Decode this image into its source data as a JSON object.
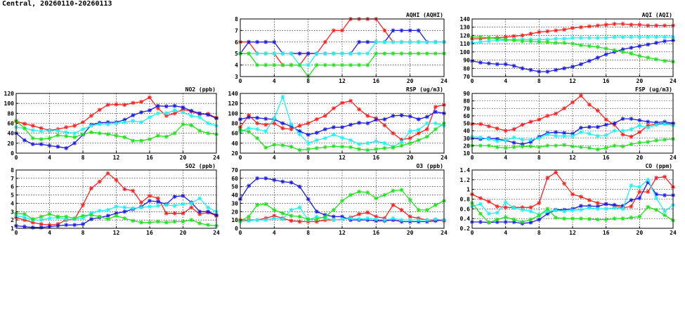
{
  "page": {
    "title": "Central, 20260110-20260113"
  },
  "colors": {
    "red": "#ff2020",
    "blue": "#1c1ce0",
    "cyan": "#20f0f0",
    "green": "#20e020"
  },
  "chart_data": [
    {
      "type": "line",
      "title": "AQHI (AQHI)",
      "xlim": [
        0,
        24
      ],
      "xticks": [
        0,
        4,
        8,
        12,
        16,
        20,
        24
      ],
      "ylim": [
        3,
        8
      ],
      "yticks": [
        3,
        4,
        5,
        6,
        7,
        8
      ],
      "grid": true,
      "series": [
        {
          "color": "#ff2020",
          "values": [
            6,
            6,
            5,
            5,
            5,
            4,
            4,
            4,
            5,
            5,
            6,
            7,
            7,
            8,
            8,
            8,
            8,
            7,
            6,
            6,
            6,
            6,
            6,
            6,
            6
          ]
        },
        {
          "color": "#1c1ce0",
          "values": [
            5,
            6,
            6,
            6,
            6,
            5,
            5,
            5,
            5,
            5,
            5,
            5,
            5,
            5,
            6,
            6,
            6,
            6,
            7,
            7,
            7,
            7,
            6,
            6,
            6
          ]
        },
        {
          "color": "#20f0f0",
          "values": [
            5,
            5,
            5,
            5,
            5,
            5,
            5,
            4,
            4,
            5,
            5,
            5,
            5,
            5,
            5,
            5,
            6,
            6,
            6,
            6,
            6,
            6,
            6,
            6,
            6
          ]
        },
        {
          "color": "#20e020",
          "values": [
            5,
            5,
            4,
            4,
            4,
            4,
            4,
            4,
            3,
            4,
            4,
            4,
            4,
            4,
            4,
            4,
            5,
            5,
            5,
            5,
            5,
            5,
            5,
            5,
            5
          ]
        }
      ]
    },
    {
      "type": "line",
      "title": "AQI (AQI)",
      "xlim": [
        0,
        24
      ],
      "xticks": [
        0,
        4,
        8,
        12,
        16,
        20,
        24
      ],
      "ylim": [
        70,
        140
      ],
      "yticks": [
        70,
        80,
        90,
        100,
        110,
        120,
        130,
        140
      ],
      "grid": true,
      "series": [
        {
          "color": "#ff2020",
          "values": [
            116,
            116,
            117,
            117,
            118,
            119,
            120,
            122,
            124,
            125,
            126,
            127,
            129,
            130,
            131,
            132,
            133,
            134,
            134,
            133,
            133,
            132,
            132,
            132,
            132
          ]
        },
        {
          "color": "#1c1ce0",
          "values": [
            89,
            87,
            86,
            85,
            85,
            83,
            80,
            78,
            76,
            76,
            78,
            80,
            82,
            85,
            89,
            93,
            97,
            100,
            103,
            105,
            107,
            109,
            111,
            113,
            114
          ]
        },
        {
          "color": "#20f0f0",
          "values": [
            111,
            112,
            113,
            114,
            114,
            115,
            115,
            115,
            115,
            115,
            116,
            116,
            117,
            117,
            117,
            117,
            117,
            118,
            118,
            118,
            118,
            118,
            118,
            118,
            118
          ]
        },
        {
          "color": "#20e020",
          "values": [
            118,
            118,
            117,
            116,
            115,
            114,
            113,
            113,
            112,
            112,
            111,
            111,
            110,
            108,
            107,
            106,
            104,
            102,
            100,
            98,
            95,
            93,
            91,
            89,
            88
          ]
        }
      ]
    },
    {
      "type": "line",
      "title": "NO2 (ppb)",
      "xlim": [
        0,
        24
      ],
      "xticks": [
        0,
        4,
        8,
        12,
        16,
        20,
        24
      ],
      "ylim": [
        0,
        120
      ],
      "yticks": [
        0,
        20,
        40,
        60,
        80,
        100,
        120
      ],
      "grid": true,
      "series": [
        {
          "color": "#ff2020",
          "values": [
            64,
            59,
            55,
            50,
            46,
            48,
            52,
            55,
            62,
            75,
            87,
            97,
            98,
            97,
            101,
            103,
            112,
            90,
            75,
            80,
            88,
            84,
            78,
            79,
            71
          ]
        },
        {
          "color": "#1c1ce0",
          "values": [
            40,
            26,
            18,
            18,
            15,
            13,
            10,
            20,
            37,
            57,
            61,
            62,
            62,
            67,
            76,
            82,
            86,
            95,
            94,
            95,
            92,
            85,
            80,
            77,
            70
          ]
        },
        {
          "color": "#20f0f0",
          "values": [
            52,
            50,
            46,
            44,
            45,
            45,
            42,
            40,
            48,
            55,
            58,
            58,
            60,
            62,
            65,
            62,
            72,
            80,
            80,
            86,
            82,
            75,
            72,
            60,
            55
          ]
        },
        {
          "color": "#20e020",
          "values": [
            65,
            50,
            30,
            28,
            30,
            36,
            34,
            32,
            38,
            42,
            40,
            38,
            35,
            32,
            25,
            25,
            28,
            35,
            33,
            40,
            58,
            56,
            45,
            40,
            38
          ]
        }
      ]
    },
    {
      "type": "line",
      "title": "RSP (ug/m3)",
      "xlim": [
        0,
        24
      ],
      "xticks": [
        0,
        4,
        8,
        12,
        16,
        20,
        24
      ],
      "ylim": [
        20,
        140
      ],
      "yticks": [
        20,
        40,
        60,
        80,
        100,
        120,
        140
      ],
      "grid": true,
      "series": [
        {
          "color": "#ff2020",
          "values": [
            72,
            96,
            80,
            77,
            80,
            70,
            68,
            75,
            80,
            88,
            95,
            110,
            121,
            125,
            108,
            95,
            90,
            76,
            60,
            47,
            50,
            60,
            68,
            113,
            117
          ]
        },
        {
          "color": "#1c1ce0",
          "values": [
            88,
            92,
            91,
            89,
            88,
            80,
            74,
            64,
            57,
            61,
            68,
            72,
            72,
            77,
            81,
            80,
            87,
            88,
            95,
            96,
            94,
            88,
            93,
            103,
            100
          ]
        },
        {
          "color": "#20f0f0",
          "values": [
            63,
            70,
            68,
            64,
            90,
            133,
            78,
            58,
            40,
            46,
            50,
            57,
            51,
            46,
            38,
            40,
            44,
            40,
            33,
            42,
            64,
            67,
            80,
            80,
            75
          ]
        },
        {
          "color": "#20e020",
          "values": [
            67,
            63,
            50,
            31,
            37,
            36,
            33,
            26,
            28,
            30,
            32,
            34,
            33,
            32,
            28,
            26,
            28,
            30,
            31,
            35,
            40,
            46,
            53,
            68,
            80
          ]
        }
      ]
    },
    {
      "type": "line",
      "title": "FSP (ug/m3)",
      "xlim": [
        0,
        24
      ],
      "xticks": [
        0,
        4,
        8,
        12,
        16,
        20,
        24
      ],
      "ylim": [
        10,
        90
      ],
      "yticks": [
        10,
        20,
        30,
        40,
        50,
        60,
        70,
        80,
        90
      ],
      "grid": true,
      "series": [
        {
          "color": "#ff2020",
          "values": [
            49,
            49,
            46,
            43,
            40,
            42,
            48,
            52,
            55,
            60,
            63,
            70,
            78,
            87,
            75,
            67,
            55,
            48,
            35,
            32,
            38,
            47,
            49,
            50,
            49
          ]
        },
        {
          "color": "#1c1ce0",
          "values": [
            30,
            29,
            30,
            29,
            27,
            24,
            22,
            25,
            32,
            37,
            38,
            37,
            36,
            44,
            45,
            45,
            48,
            50,
            56,
            56,
            54,
            52,
            51,
            52,
            50
          ]
        },
        {
          "color": "#20f0f0",
          "values": [
            32,
            31,
            29,
            26,
            27,
            31,
            28,
            28,
            30,
            35,
            33,
            33,
            33,
            38,
            36,
            33,
            34,
            40,
            40,
            42,
            47,
            44,
            48,
            49,
            47
          ]
        },
        {
          "color": "#20e020",
          "values": [
            20,
            20,
            20,
            18,
            17,
            18,
            19,
            19,
            18,
            20,
            20,
            21,
            19,
            18,
            17,
            15,
            17,
            20,
            19,
            22,
            24,
            25,
            27,
            28,
            29
          ]
        }
      ]
    },
    {
      "type": "line",
      "title": "SO2 (ppb)",
      "xlim": [
        0,
        24
      ],
      "xticks": [
        0,
        4,
        8,
        12,
        16,
        20,
        24
      ],
      "ylim": [
        1,
        8
      ],
      "yticks": [
        1,
        2,
        3,
        4,
        5,
        6,
        7,
        8
      ],
      "grid": true,
      "series": [
        {
          "color": "#ff2020",
          "values": [
            2.3,
            2.0,
            1.7,
            1.5,
            1.4,
            1.5,
            2.0,
            2.1,
            3.8,
            5.8,
            6.6,
            7.6,
            6.8,
            5.7,
            5.5,
            4.1,
            4.9,
            4.6,
            2.8,
            2.8,
            2.8,
            3.5,
            2.7,
            2.9,
            2.5
          ]
        },
        {
          "color": "#1c1ce0",
          "values": [
            1.3,
            1.2,
            1.1,
            1.1,
            1.2,
            1.3,
            1.4,
            1.4,
            1.5,
            2.1,
            2.3,
            2.5,
            2.8,
            3.0,
            3.3,
            3.6,
            4.3,
            4.2,
            3.9,
            4.8,
            4.9,
            4.1,
            3.0,
            3.0,
            2.6
          ]
        },
        {
          "color": "#20f0f0",
          "values": [
            2.5,
            2.3,
            2.0,
            2.0,
            2.2,
            2.3,
            2.1,
            2.1,
            2.2,
            2.8,
            3.1,
            3.2,
            3.6,
            3.5,
            3.4,
            3.5,
            3.6,
            3.7,
            3.8,
            3.7,
            3.9,
            4.0,
            4.6,
            3.5,
            3.0
          ]
        },
        {
          "color": "#20e020",
          "values": [
            2.8,
            2.7,
            2.1,
            2.4,
            2.7,
            2.4,
            2.4,
            2.2,
            2.5,
            2.6,
            2.4,
            2.1,
            2.5,
            2.2,
            1.9,
            1.7,
            1.7,
            1.8,
            1.7,
            1.8,
            1.8,
            2.0,
            1.6,
            1.4,
            1.3
          ]
        }
      ]
    },
    {
      "type": "line",
      "title": "O3 (ppb)",
      "xlim": [
        0,
        24
      ],
      "xticks": [
        0,
        4,
        8,
        12,
        16,
        20,
        24
      ],
      "ylim": [
        0,
        70
      ],
      "yticks": [
        0,
        10,
        20,
        30,
        40,
        50,
        60,
        70
      ],
      "grid": true,
      "series": [
        {
          "color": "#ff2020",
          "values": [
            10,
            10,
            10,
            12,
            15,
            12,
            9,
            8,
            8,
            8,
            10,
            10,
            11,
            13,
            17,
            19,
            14,
            12,
            28,
            22,
            14,
            12,
            10,
            10,
            9
          ]
        },
        {
          "color": "#1c1ce0",
          "values": [
            35,
            51,
            60,
            60,
            58,
            56,
            55,
            50,
            35,
            20,
            16,
            14,
            14,
            10,
            10,
            10,
            9,
            9,
            10,
            8,
            8,
            8,
            8,
            9,
            10
          ]
        },
        {
          "color": "#20f0f0",
          "values": [
            8,
            9,
            10,
            10,
            12,
            11,
            22,
            25,
            10,
            14,
            12,
            10,
            11,
            12,
            11,
            12,
            11,
            10,
            12,
            10,
            10,
            10,
            10,
            11,
            10
          ]
        },
        {
          "color": "#20e020",
          "values": [
            9,
            14,
            28,
            29,
            22,
            18,
            15,
            14,
            11,
            11,
            14,
            22,
            33,
            40,
            44,
            43,
            36,
            40,
            45,
            46,
            34,
            22,
            22,
            28,
            33
          ]
        }
      ]
    },
    {
      "type": "line",
      "title": "CO (ppm)",
      "xlim": [
        0,
        24
      ],
      "xticks": [
        0,
        4,
        8,
        12,
        16,
        20,
        24
      ],
      "ylim": [
        0.2,
        1.4
      ],
      "yticks": [
        0.2,
        0.4,
        0.6,
        0.8,
        1.0,
        1.2,
        1.4
      ],
      "grid": true,
      "series": [
        {
          "color": "#ff2020",
          "values": [
            0.9,
            0.82,
            0.75,
            0.65,
            0.63,
            0.63,
            0.63,
            0.63,
            0.72,
            1.24,
            1.35,
            1.12,
            0.9,
            0.85,
            0.78,
            0.72,
            0.7,
            0.66,
            0.62,
            0.65,
            0.95,
            0.95,
            1.24,
            1.26,
            1.05
          ]
        },
        {
          "color": "#1c1ce0",
          "values": [
            0.33,
            0.33,
            0.32,
            0.33,
            0.33,
            0.33,
            0.3,
            0.32,
            0.38,
            0.5,
            0.58,
            0.58,
            0.6,
            0.66,
            0.66,
            0.65,
            0.7,
            0.68,
            0.66,
            0.78,
            0.82,
            1.15,
            0.9,
            0.88,
            0.88
          ]
        },
        {
          "color": "#20f0f0",
          "values": [
            0.65,
            0.7,
            0.5,
            0.52,
            0.73,
            0.62,
            0.58,
            0.55,
            0.48,
            0.55,
            0.57,
            0.55,
            0.57,
            0.58,
            0.62,
            0.6,
            0.6,
            0.62,
            0.6,
            1.08,
            1.05,
            1.2,
            0.82,
            0.55,
            0.68
          ]
        },
        {
          "color": "#20e020",
          "values": [
            0.72,
            0.5,
            0.32,
            0.38,
            0.43,
            0.38,
            0.33,
            0.38,
            0.46,
            0.6,
            0.42,
            0.4,
            0.4,
            0.4,
            0.39,
            0.38,
            0.38,
            0.4,
            0.4,
            0.42,
            0.44,
            0.64,
            0.58,
            0.47,
            0.36
          ]
        }
      ]
    }
  ]
}
